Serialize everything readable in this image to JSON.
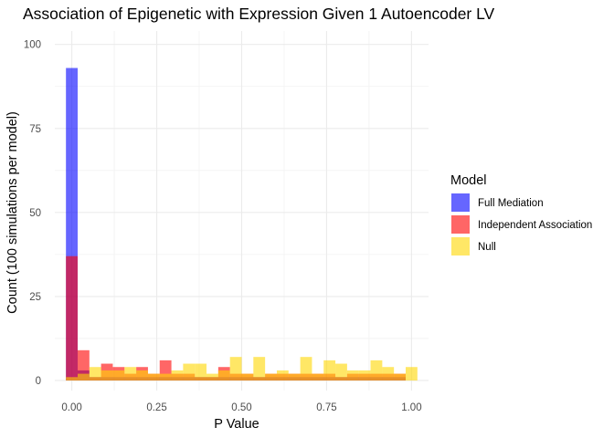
{
  "chart_data": {
    "type": "bar",
    "title": "Association of Epigenetic with Expression Given 1 Autoencoder LV",
    "xlabel": "P Value",
    "ylabel": "Count (100 simulations per model)",
    "xlim": [
      -0.05,
      1.05
    ],
    "ylim": [
      -3,
      104
    ],
    "x_ticks": [
      0,
      0.25,
      0.5,
      0.75,
      1
    ],
    "x_tick_labels": [
      "0.00",
      "0.25",
      "0.50",
      "0.75",
      "1.00"
    ],
    "y_ticks": [
      0,
      25,
      50,
      75,
      100
    ],
    "y_tick_labels": [
      "0",
      "25",
      "50",
      "75",
      "100"
    ],
    "grid": true,
    "bin_width": 0.0345,
    "bin_centers": [
      0.0,
      0.0345,
      0.069,
      0.1034,
      0.1379,
      0.1724,
      0.2069,
      0.2414,
      0.2759,
      0.3103,
      0.3448,
      0.3793,
      0.4138,
      0.4483,
      0.4828,
      0.5172,
      0.5517,
      0.5862,
      0.6207,
      0.6552,
      0.6897,
      0.7241,
      0.7586,
      0.7931,
      0.8276,
      0.8621,
      0.8966,
      0.931,
      0.9655,
      1.0
    ],
    "legend": {
      "title": "Model",
      "position": "right"
    },
    "series": [
      {
        "name": "Full Mediation",
        "color": "#0000FF",
        "values": [
          93,
          3,
          1,
          1,
          1,
          1,
          1,
          1,
          1,
          1,
          1,
          1,
          1,
          1,
          1,
          1,
          1,
          1,
          1,
          1,
          1,
          1,
          1,
          1,
          1,
          1,
          1,
          1,
          1,
          0
        ]
      },
      {
        "name": "Independent Association",
        "color": "#FF0000",
        "values": [
          37,
          9,
          1,
          5,
          4,
          2,
          4,
          2,
          6,
          2,
          2,
          1,
          1,
          4,
          2,
          2,
          1,
          2,
          2,
          2,
          2,
          2,
          2,
          1,
          2,
          2,
          2,
          2,
          2,
          0
        ]
      },
      {
        "name": "Null",
        "color": "#FFD700",
        "values": [
          1,
          2,
          4,
          3,
          3,
          4,
          3,
          2,
          2,
          3,
          5,
          5,
          2,
          3,
          7,
          2,
          7,
          2,
          3,
          2,
          7,
          2,
          6,
          5,
          3,
          3,
          6,
          4,
          2,
          4
        ]
      }
    ]
  }
}
